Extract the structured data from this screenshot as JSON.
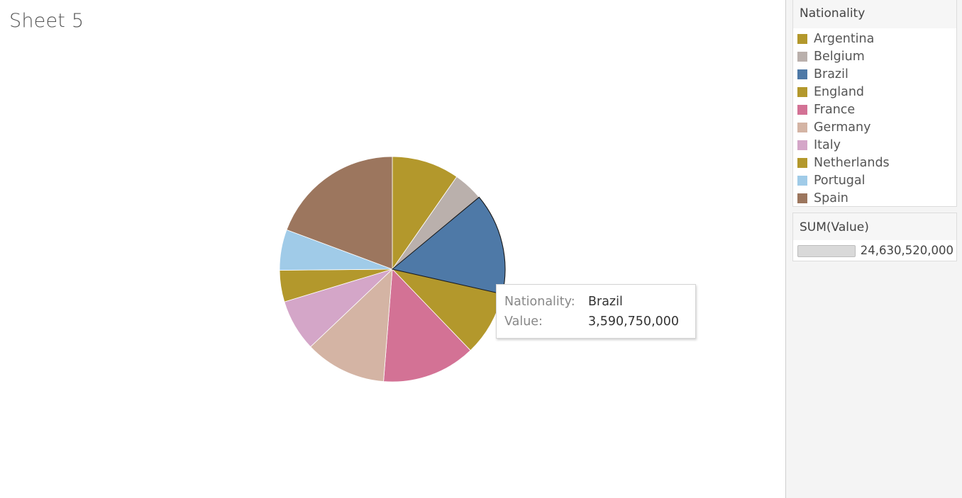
{
  "sheet": {
    "title": "Sheet 5"
  },
  "chart_data": {
    "type": "pie",
    "measure": "SUM(Value)",
    "categories": [
      "Argentina",
      "Belgium",
      "Brazil",
      "England",
      "France",
      "Germany",
      "Italy",
      "Netherlands",
      "Portugal",
      "Spain"
    ],
    "values": [
      2383610000,
      1056670000,
      3590750000,
      2284790000,
      3305880000,
      2872890000,
      1825240000,
      1115650000,
      1437390000,
      4757650000
    ],
    "colors": [
      "#b3982c",
      "#bab0ac",
      "#4e79a7",
      "#b3982c",
      "#d37295",
      "#d4b4a4",
      "#d4a6c8",
      "#b3982c",
      "#a0cbe8",
      "#9c765e"
    ],
    "slice_order": [
      "Argentina",
      "Belgium",
      "Brazil",
      "England",
      "France",
      "Germany",
      "Italy",
      "Netherlands",
      "Portugal",
      "Spain"
    ],
    "highlighted": "Brazil",
    "start_angle": "12 o'clock",
    "direction": "clockwise"
  },
  "tooltip": {
    "key1": "Nationality:",
    "val1": "Brazil",
    "key2": "Value:",
    "val2": "3,590,750,000"
  },
  "legend": {
    "title": "Nationality",
    "items": [
      {
        "label": "Argentina",
        "color": "#b3982c"
      },
      {
        "label": "Belgium",
        "color": "#bab0ac"
      },
      {
        "label": "Brazil",
        "color": "#4e79a7"
      },
      {
        "label": "England",
        "color": "#b3982c"
      },
      {
        "label": "France",
        "color": "#d37295"
      },
      {
        "label": "Germany",
        "color": "#d4b4a4"
      },
      {
        "label": "Italy",
        "color": "#d4a6c8"
      },
      {
        "label": "Netherlands",
        "color": "#b3982c"
      },
      {
        "label": "Portugal",
        "color": "#a0cbe8"
      },
      {
        "label": "Spain",
        "color": "#9c765e"
      }
    ]
  },
  "size_legend": {
    "title": "SUM(Value)",
    "label": "24,630,520,000"
  }
}
